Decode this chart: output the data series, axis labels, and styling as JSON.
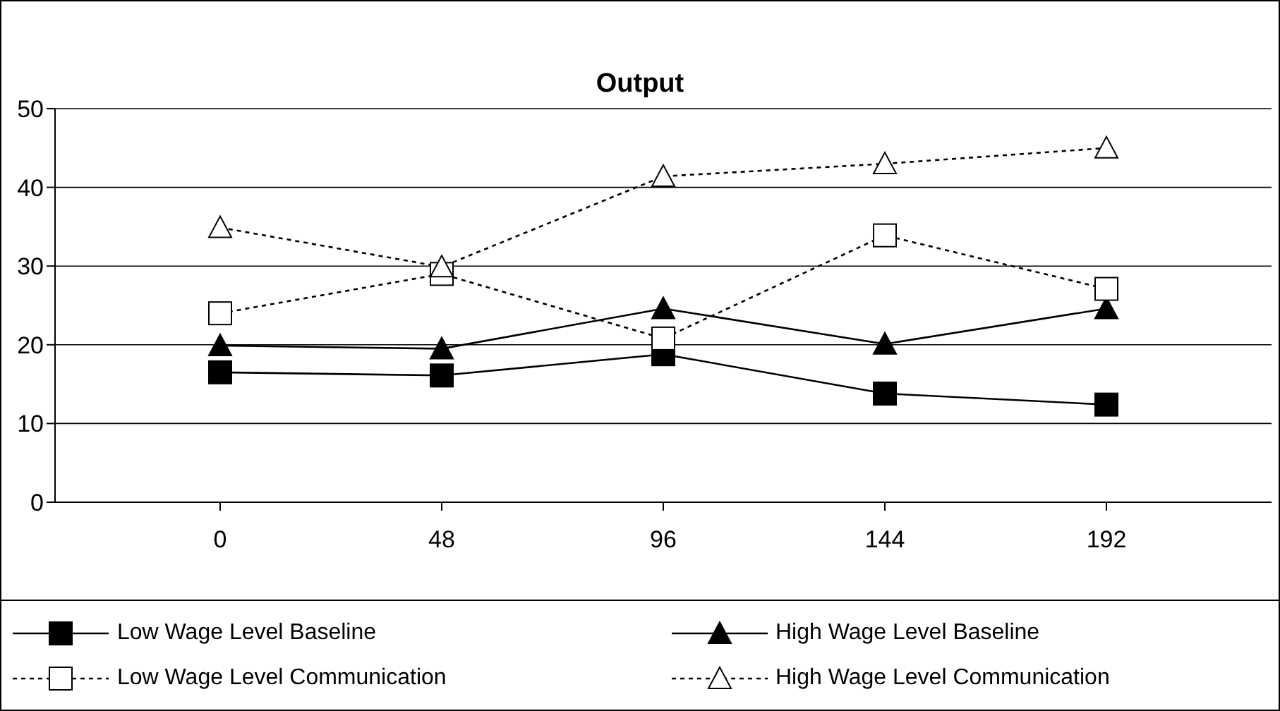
{
  "chart_data": {
    "type": "line",
    "title": "Output",
    "categories": [
      "0",
      "48",
      "96",
      "144",
      "192"
    ],
    "series": [
      {
        "name": "Low Wage Level Baseline",
        "color": "#000000",
        "values": [
          16.5,
          16.1,
          18.8,
          13.8,
          12.4
        ],
        "marker": "square",
        "line_style": "solid"
      },
      {
        "name": "High Wage Level Baseline",
        "color": "#000000",
        "values": [
          19.9,
          19.5,
          24.6,
          20.1,
          24.6
        ],
        "marker": "triangle",
        "line_style": "solid"
      },
      {
        "name": "Low Wage Level Communication",
        "color": "#000000",
        "values": [
          24.0,
          29.0,
          20.8,
          33.9,
          27.1
        ],
        "marker": "square",
        "line_style": "dotted"
      },
      {
        "name": "High Wage Level Communication",
        "color": "#000000",
        "values": [
          34.9,
          29.9,
          41.4,
          43.0,
          45.0
        ],
        "marker": "triangle",
        "line_style": "dotted"
      }
    ],
    "ylim": [
      0,
      50
    ],
    "yticks": [
      0,
      10,
      20,
      30,
      40,
      50
    ],
    "grid": "y",
    "legend": "bottom"
  }
}
